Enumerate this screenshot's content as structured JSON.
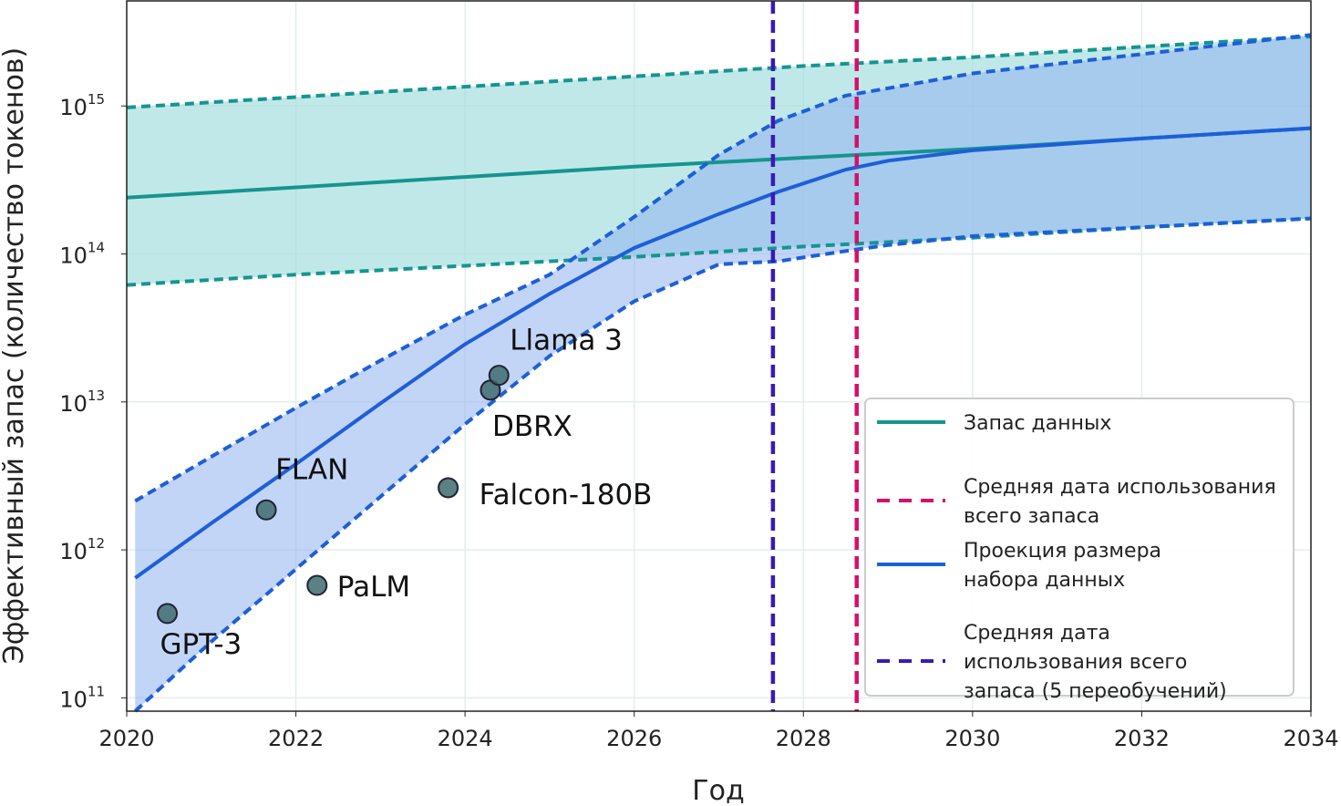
{
  "chart_data": {
    "type": "line",
    "title": "",
    "xlabel": "Год",
    "ylabel": "Эффективный запас (количество токенов)",
    "xlim": [
      2020,
      2034
    ],
    "ylim_log10": [
      10.91,
      15.71
    ],
    "yscale": "log",
    "grid": true,
    "x_ticks": [
      "2020",
      "2022",
      "2024",
      "2026",
      "2028",
      "2030",
      "2032",
      "2034"
    ],
    "y_ticks": [
      {
        "base": "10",
        "exp": "11",
        "log": 11
      },
      {
        "base": "10",
        "exp": "12",
        "log": 12
      },
      {
        "base": "10",
        "exp": "13",
        "log": 13
      },
      {
        "base": "10",
        "exp": "14",
        "log": 14
      },
      {
        "base": "10",
        "exp": "15",
        "log": 15
      }
    ],
    "colors": {
      "stock": "#159590",
      "stock_fill": "#9fdcdc",
      "projection": "#1d5fd8",
      "projection_fill": "#8fb2f0",
      "median_date": "#d4106c",
      "median_date_5x": "#3a1bb0",
      "point": "#3f6b6e"
    },
    "series": [
      {
        "name": "Запас данных",
        "kind": "stock",
        "x": [
          2020,
          2022,
          2024,
          2026,
          2028,
          2030,
          2032,
          2034
        ],
        "log_median": [
          14.38,
          14.45,
          14.52,
          14.59,
          14.65,
          14.71,
          14.78,
          14.85
        ],
        "log_upper": [
          14.99,
          15.06,
          15.13,
          15.2,
          15.27,
          15.33,
          15.4,
          15.47
        ],
        "log_lower": [
          13.79,
          13.86,
          13.92,
          13.98,
          14.05,
          14.11,
          14.18,
          14.24
        ]
      },
      {
        "name": "Проекция размера набора данных",
        "kind": "projection",
        "x": [
          2020.1,
          2021,
          2022,
          2023,
          2024,
          2025,
          2026,
          2027,
          2027.7,
          2028.5,
          2029,
          2030,
          2032,
          2034
        ],
        "log_median": [
          11.81,
          12.18,
          12.58,
          12.99,
          13.39,
          13.73,
          14.04,
          14.27,
          14.42,
          14.57,
          14.63,
          14.7,
          14.78,
          14.85
        ],
        "log_upper": [
          12.33,
          12.63,
          12.96,
          13.28,
          13.59,
          13.86,
          14.25,
          14.67,
          14.9,
          15.07,
          15.12,
          15.22,
          15.35,
          15.48
        ],
        "log_lower": [
          10.91,
          11.38,
          11.87,
          12.36,
          12.85,
          13.31,
          13.68,
          13.93,
          13.95,
          14.02,
          14.06,
          14.12,
          14.18,
          14.24
        ]
      }
    ],
    "vlines": [
      {
        "name": "Средняя дата использования всего запаса",
        "x": 2028.63,
        "kind": "median_date"
      },
      {
        "name": "Средняя дата использования всего запаса (5 переобучений)",
        "x": 2027.64,
        "kind": "median_date_5x"
      }
    ],
    "points": [
      {
        "label": "GPT-3",
        "x": 2020.48,
        "log": 11.57
      },
      {
        "label": "FLAN",
        "x": 2021.65,
        "log": 12.27
      },
      {
        "label": "PaLM",
        "x": 2022.25,
        "log": 11.76
      },
      {
        "label": "Falcon-180B",
        "x": 2023.8,
        "log": 12.42
      },
      {
        "label": "DBRX",
        "x": 2024.3,
        "log": 13.08
      },
      {
        "label": "Llama 3",
        "x": 2024.4,
        "log": 13.18
      }
    ],
    "legend": {
      "placement": "bottom-right",
      "entries": [
        {
          "kind": "stock",
          "lines": [
            "Запас данных"
          ]
        },
        {
          "kind": "median_date",
          "lines": [
            "Средняя дата использования",
            "всего запаса"
          ]
        },
        {
          "kind": "projection",
          "lines": [
            "Проекция размера",
            "набора данных"
          ]
        },
        {
          "kind": "median_date_5x",
          "lines": [
            "Средняя дата",
            "использования всего",
            "запаса (5 переобучений)"
          ]
        }
      ]
    }
  }
}
